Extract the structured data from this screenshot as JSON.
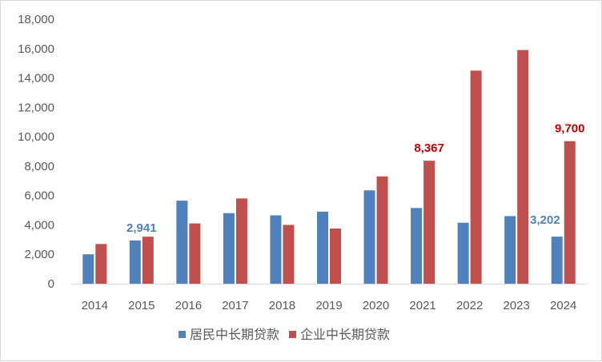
{
  "chart_data": {
    "type": "bar",
    "title": "",
    "xlabel": "",
    "ylabel": "",
    "ylim": [
      0,
      18000
    ],
    "yticks": [
      "0",
      "2,000",
      "4,000",
      "6,000",
      "8,000",
      "10,000",
      "12,000",
      "14,000",
      "16,000",
      "18,000"
    ],
    "ytick_values": [
      0,
      2000,
      4000,
      6000,
      8000,
      10000,
      12000,
      14000,
      16000,
      18000
    ],
    "grid": false,
    "legend_position": "bottom",
    "categories": [
      "2014",
      "2015",
      "2016",
      "2017",
      "2018",
      "2019",
      "2020",
      "2021",
      "2022",
      "2023",
      "2024"
    ],
    "series": [
      {
        "name": "居民中长期贷款",
        "color": "#4f81bd",
        "label_color": "#4f81bd",
        "values": [
          2000,
          2941,
          5650,
          4800,
          4650,
          4900,
          6350,
          5150,
          4150,
          4600,
          3202
        ]
      },
      {
        "name": "企业中长期贷款",
        "color": "#c0504d",
        "label_color": "#c00000",
        "values": [
          2700,
          3200,
          4100,
          5800,
          4000,
          3750,
          7300,
          8367,
          14500,
          15900,
          9700
        ]
      }
    ],
    "data_labels": [
      {
        "series": 0,
        "index": 1,
        "text": "2,941"
      },
      {
        "series": 0,
        "index": 10,
        "text": "3,202"
      },
      {
        "series": 1,
        "index": 7,
        "text": "8,367"
      },
      {
        "series": 1,
        "index": 10,
        "text": "9,700"
      }
    ]
  }
}
